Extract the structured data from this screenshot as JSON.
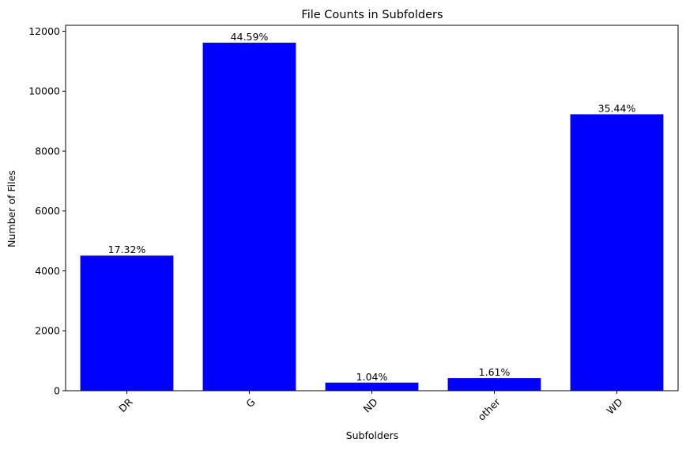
{
  "chart_data": {
    "type": "bar",
    "title": "File Counts in Subfolders",
    "xlabel": "Subfolders",
    "ylabel": "Number of Files",
    "categories": [
      "DR",
      "G",
      "ND",
      "other",
      "WD"
    ],
    "values": [
      4510,
      11620,
      270,
      420,
      9230
    ],
    "data_labels": [
      "17.32%",
      "44.59%",
      "1.04%",
      "1.61%",
      "35.44%"
    ],
    "ylim": [
      0,
      12200
    ],
    "yticks": [
      0,
      2000,
      4000,
      6000,
      8000,
      10000,
      12000
    ],
    "ytick_labels": [
      "0",
      "2000",
      "4000",
      "6000",
      "8000",
      "10000",
      "12000"
    ],
    "xtick_rotation": 45,
    "bar_color": "#0000ff",
    "grid": false,
    "legend": "none"
  }
}
